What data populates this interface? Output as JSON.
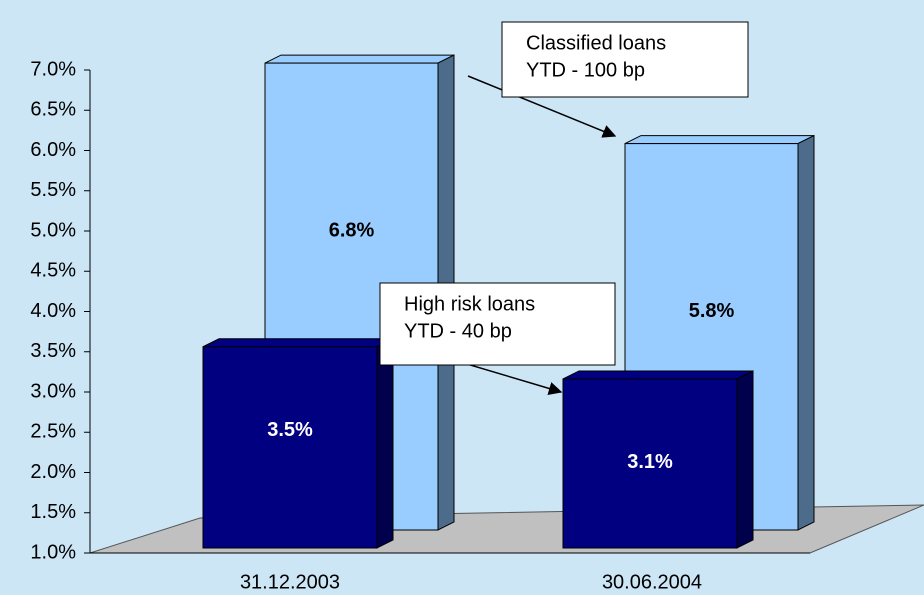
{
  "chart_data": {
    "type": "bar3d",
    "categories": [
      "31.12.2003",
      "30.06.2004"
    ],
    "series": [
      {
        "color": "#99ccff",
        "side_color": "#4d6b8a",
        "values": [
          6.8,
          5.8
        ],
        "value_labels": [
          "6.8%",
          "5.8%"
        ]
      },
      {
        "color": "#000080",
        "side_color": "#00004d",
        "values": [
          3.5,
          3.1
        ],
        "value_labels": [
          "3.5%",
          "3.1%"
        ]
      }
    ],
    "ylim": [
      1,
      7
    ],
    "yticks": [
      {
        "value": 1,
        "label": "1.0%"
      },
      {
        "value": 1.5,
        "label": "1.5%"
      },
      {
        "value": 2,
        "label": "2.0%"
      },
      {
        "value": 2.5,
        "label": "2.5%"
      },
      {
        "value": 3,
        "label": "3.0%"
      },
      {
        "value": 3.5,
        "label": "3.5%"
      },
      {
        "value": 4,
        "label": "4.0%"
      },
      {
        "value": 4.5,
        "label": "4.5%"
      },
      {
        "value": 5,
        "label": "5.0%"
      },
      {
        "value": 5.5,
        "label": "5.5%"
      },
      {
        "value": 6,
        "label": "6.0%"
      },
      {
        "value": 6.5,
        "label": "6.5%"
      },
      {
        "value": 7,
        "label": "7.0%"
      }
    ],
    "annotations": [
      {
        "lines": [
          "Classified loans",
          "YTD - 100 bp"
        ]
      },
      {
        "lines": [
          "High risk loans",
          "YTD - 40 bp"
        ]
      }
    ]
  }
}
